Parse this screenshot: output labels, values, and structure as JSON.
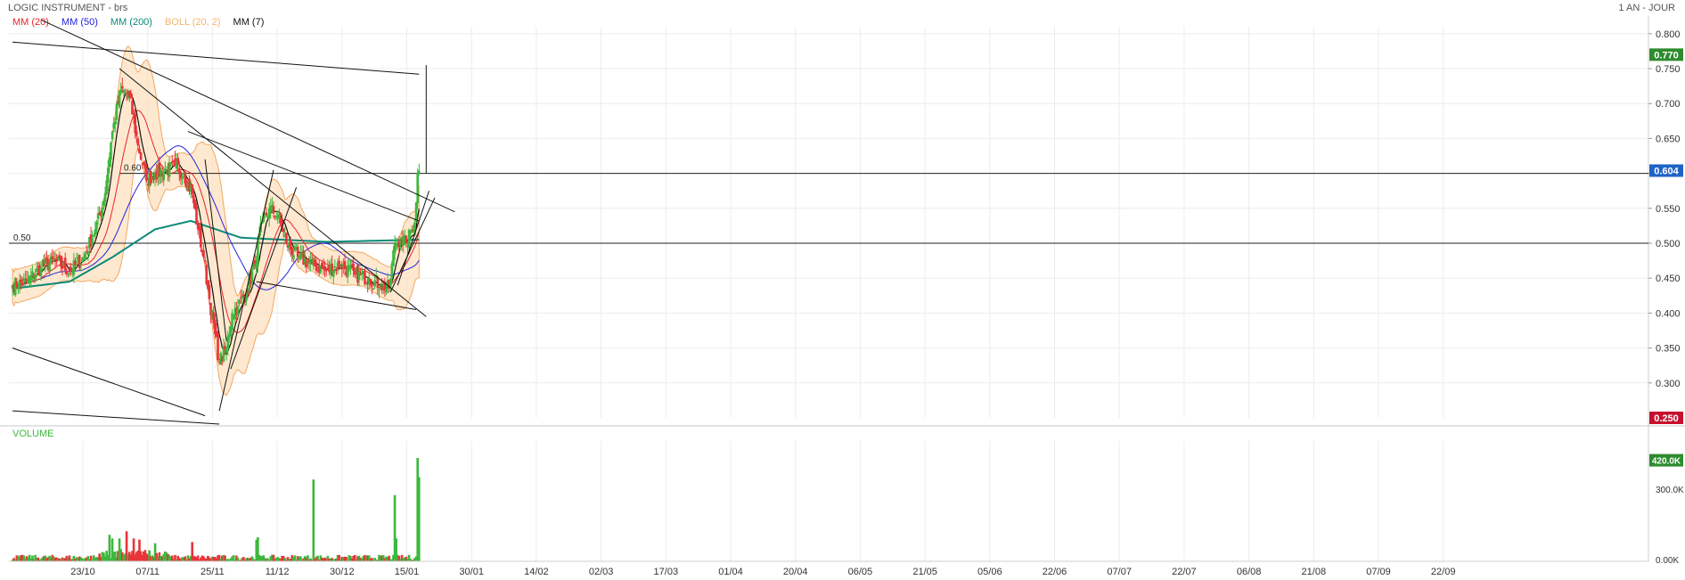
{
  "header": {
    "title": "LOGIC INSTRUMENT - brs",
    "period": "1 AN - JOUR",
    "indicators": [
      {
        "label": "MM (20)",
        "color": "#e8222a"
      },
      {
        "label": "MM (50)",
        "color": "#2222dd"
      },
      {
        "label": "MM (200)",
        "color": "#0a8a78"
      },
      {
        "label": "BOLL (20, 2)",
        "color": "#f5b36b"
      },
      {
        "label": "MM (7)",
        "color": "#111111"
      }
    ]
  },
  "price_axis": {
    "ticks": [
      "0.800",
      "0.750",
      "0.700",
      "0.650",
      "0.600",
      "0.550",
      "0.500",
      "0.450",
      "0.400",
      "0.350",
      "0.300"
    ],
    "badges": [
      {
        "value": "0.770",
        "color": "#2e8b2e"
      },
      {
        "value": "0.604",
        "color": "#1f63c6"
      },
      {
        "value": "0.250",
        "color": "#c8102e"
      }
    ]
  },
  "levels": [
    {
      "label": "0.60",
      "value": 0.6
    },
    {
      "label": "0.50",
      "value": 0.5
    }
  ],
  "volume": {
    "title": "VOLUME",
    "ticks": [
      "300.0K",
      "0.00K"
    ],
    "badge": {
      "value": "420.0K",
      "color": "#2e8b2e"
    }
  },
  "x_axis": {
    "labels": [
      "23/10",
      "07/11",
      "25/11",
      "11/12",
      "30/12",
      "15/01",
      "30/01",
      "14/02",
      "02/03",
      "17/03",
      "01/04",
      "20/04",
      "06/05",
      "21/05",
      "05/06",
      "22/06",
      "07/07",
      "22/07",
      "06/08",
      "21/08",
      "07/09",
      "22/09"
    ]
  },
  "chart_data": {
    "type": "candlestick",
    "ylim": [
      0.25,
      0.81
    ],
    "volume_ylim": [
      0,
      500
    ],
    "volume_unit": "K",
    "colors": {
      "up": "#3cb83c",
      "down": "#e8343a"
    },
    "close_anchors": [
      {
        "i": 0,
        "c": 0.44
      },
      {
        "i": 10,
        "c": 0.445
      },
      {
        "i": 20,
        "c": 0.465
      },
      {
        "i": 30,
        "c": 0.475
      },
      {
        "i": 40,
        "c": 0.46
      },
      {
        "i": 50,
        "c": 0.48
      },
      {
        "i": 58,
        "c": 0.52
      },
      {
        "i": 64,
        "c": 0.56
      },
      {
        "i": 70,
        "c": 0.66
      },
      {
        "i": 76,
        "c": 0.72
      },
      {
        "i": 82,
        "c": 0.71
      },
      {
        "i": 88,
        "c": 0.64
      },
      {
        "i": 94,
        "c": 0.59
      },
      {
        "i": 100,
        "c": 0.6
      },
      {
        "i": 108,
        "c": 0.605
      },
      {
        "i": 114,
        "c": 0.61
      },
      {
        "i": 120,
        "c": 0.6
      },
      {
        "i": 126,
        "c": 0.57
      },
      {
        "i": 130,
        "c": 0.52
      },
      {
        "i": 134,
        "c": 0.48
      },
      {
        "i": 138,
        "c": 0.42
      },
      {
        "i": 142,
        "c": 0.37
      },
      {
        "i": 145,
        "c": 0.33
      },
      {
        "i": 150,
        "c": 0.35
      },
      {
        "i": 154,
        "c": 0.4
      },
      {
        "i": 158,
        "c": 0.41
      },
      {
        "i": 164,
        "c": 0.43
      },
      {
        "i": 170,
        "c": 0.47
      },
      {
        "i": 175,
        "c": 0.53
      },
      {
        "i": 180,
        "c": 0.55
      },
      {
        "i": 186,
        "c": 0.54
      },
      {
        "i": 192,
        "c": 0.5
      },
      {
        "i": 200,
        "c": 0.48
      },
      {
        "i": 210,
        "c": 0.47
      },
      {
        "i": 220,
        "c": 0.46
      },
      {
        "i": 230,
        "c": 0.47
      },
      {
        "i": 240,
        "c": 0.455
      },
      {
        "i": 250,
        "c": 0.45
      },
      {
        "i": 258,
        "c": 0.44
      },
      {
        "i": 264,
        "c": 0.435
      },
      {
        "i": 268,
        "c": 0.5
      },
      {
        "i": 272,
        "c": 0.505
      },
      {
        "i": 276,
        "c": 0.5
      },
      {
        "i": 280,
        "c": 0.52
      },
      {
        "i": 282,
        "c": 0.53
      },
      {
        "i": 284,
        "c": 0.6
      },
      {
        "i": 285,
        "c": 0.604
      }
    ],
    "candle_count": 286,
    "volume_spikes": [
      {
        "i": 68,
        "v": 110
      },
      {
        "i": 70,
        "v": 95
      },
      {
        "i": 75,
        "v": 95
      },
      {
        "i": 80,
        "v": 125
      },
      {
        "i": 85,
        "v": 95
      },
      {
        "i": 89,
        "v": 90
      },
      {
        "i": 100,
        "v": 75
      },
      {
        "i": 126,
        "v": 80
      },
      {
        "i": 171,
        "v": 90
      },
      {
        "i": 172,
        "v": 100
      },
      {
        "i": 211,
        "v": 340
      },
      {
        "i": 268,
        "v": 275
      },
      {
        "i": 269,
        "v": 95
      },
      {
        "i": 284,
        "v": 430
      },
      {
        "i": 285,
        "v": 350
      }
    ],
    "series": [
      {
        "name": "MM (20)",
        "color": "#e8222a",
        "period": 20
      },
      {
        "name": "MM (50)",
        "color": "#2222dd",
        "period": 50
      },
      {
        "name": "MM (200)",
        "color": "#0a8a78",
        "period": 200
      },
      {
        "name": "MM (7)",
        "color": "#111111",
        "period": 7
      },
      {
        "name": "BOLL (20, 2)",
        "color": "#f5b36b",
        "period": 20
      }
    ],
    "mm200_anchors": [
      {
        "i": 0,
        "v": 0.435
      },
      {
        "i": 40,
        "v": 0.445
      },
      {
        "i": 70,
        "v": 0.48
      },
      {
        "i": 100,
        "v": 0.52
      },
      {
        "i": 125,
        "v": 0.532
      },
      {
        "i": 160,
        "v": 0.508
      },
      {
        "i": 220,
        "v": 0.502
      },
      {
        "i": 285,
        "v": 0.505
      }
    ],
    "trendlines": [
      [
        {
          "i": 0,
          "p": 0.788
        },
        {
          "i": 285,
          "p": 0.742
        }
      ],
      [
        {
          "i": 20,
          "p": 0.82
        },
        {
          "i": 310,
          "p": 0.545
        }
      ],
      [
        {
          "i": 75,
          "p": 0.75
        },
        {
          "i": 290,
          "p": 0.395
        }
      ],
      [
        {
          "i": 123,
          "p": 0.66
        },
        {
          "i": 285,
          "p": 0.532
        }
      ],
      [
        {
          "i": 0,
          "p": 0.35
        },
        {
          "i": 135,
          "p": 0.253
        }
      ],
      [
        {
          "i": 0,
          "p": 0.26
        },
        {
          "i": 145,
          "p": 0.241
        }
      ],
      [
        {
          "i": 135,
          "p": 0.62
        },
        {
          "i": 150,
          "p": 0.36
        }
      ],
      [
        {
          "i": 145,
          "p": 0.26
        },
        {
          "i": 183,
          "p": 0.605
        }
      ],
      [
        {
          "i": 153,
          "p": 0.32
        },
        {
          "i": 199,
          "p": 0.58
        }
      ],
      [
        {
          "i": 171,
          "p": 0.445
        },
        {
          "i": 283,
          "p": 0.405
        }
      ],
      [
        {
          "i": 265,
          "p": 0.43
        },
        {
          "i": 296,
          "p": 0.565
        }
      ],
      [
        {
          "i": 270,
          "p": 0.44
        },
        {
          "i": 292,
          "p": 0.575
        }
      ]
    ],
    "vertical_marker": {
      "i": 290,
      "from": 0.6,
      "to": 0.755
    }
  }
}
